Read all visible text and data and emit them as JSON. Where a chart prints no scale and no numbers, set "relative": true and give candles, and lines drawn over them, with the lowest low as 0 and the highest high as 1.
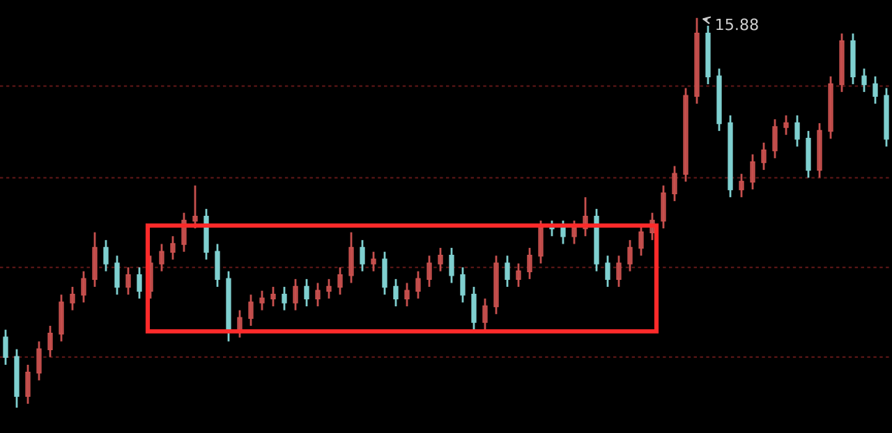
{
  "chart_data": {
    "type": "candlestick",
    "relative": true,
    "categories": [
      null,
      null,
      null,
      null,
      null,
      null,
      null,
      null,
      null,
      null,
      null,
      null,
      null,
      null,
      null,
      null,
      null,
      null,
      null,
      null,
      null,
      null,
      null,
      null,
      null,
      null,
      null,
      null,
      null,
      null,
      null,
      null,
      null,
      null,
      null,
      null,
      null,
      null,
      null,
      null,
      null,
      null,
      null,
      null,
      null,
      null,
      null,
      null,
      null,
      null,
      null,
      null,
      null,
      null,
      null,
      null,
      null,
      null,
      null,
      null,
      null,
      null,
      null,
      null,
      null,
      null,
      null,
      null,
      null,
      null,
      null,
      null,
      null,
      null,
      null,
      null,
      null,
      null,
      null,
      null
    ],
    "ohlc": [
      [
        0.18,
        0.2,
        0.11,
        0.13
      ],
      [
        0.13,
        0.15,
        0.0,
        0.03
      ],
      [
        0.03,
        0.11,
        0.01,
        0.09
      ],
      [
        0.09,
        0.17,
        0.07,
        0.15
      ],
      [
        0.15,
        0.21,
        0.13,
        0.19
      ],
      [
        0.19,
        0.29,
        0.17,
        0.27
      ],
      [
        0.27,
        0.31,
        0.25,
        0.29
      ],
      [
        0.29,
        0.35,
        0.27,
        0.33
      ],
      [
        0.33,
        0.45,
        0.31,
        0.41
      ],
      [
        0.41,
        0.43,
        0.35,
        0.37
      ],
      [
        0.37,
        0.39,
        0.29,
        0.31
      ],
      [
        0.31,
        0.36,
        0.29,
        0.34
      ],
      [
        0.34,
        0.36,
        0.28,
        0.3
      ],
      [
        0.3,
        0.39,
        0.28,
        0.37
      ],
      [
        0.37,
        0.42,
        0.35,
        0.4
      ],
      [
        0.4,
        0.44,
        0.38,
        0.42
      ],
      [
        0.42,
        0.5,
        0.4,
        0.48
      ],
      [
        0.48,
        0.57,
        0.46,
        0.49
      ],
      [
        0.49,
        0.51,
        0.38,
        0.4
      ],
      [
        0.4,
        0.42,
        0.31,
        0.33
      ],
      [
        0.33,
        0.35,
        0.17,
        0.2
      ],
      [
        0.2,
        0.25,
        0.18,
        0.23
      ],
      [
        0.23,
        0.29,
        0.21,
        0.27
      ],
      [
        0.27,
        0.3,
        0.25,
        0.28
      ],
      [
        0.28,
        0.31,
        0.26,
        0.29
      ],
      [
        0.29,
        0.31,
        0.25,
        0.27
      ],
      [
        0.27,
        0.33,
        0.25,
        0.31
      ],
      [
        0.31,
        0.33,
        0.26,
        0.28
      ],
      [
        0.28,
        0.32,
        0.26,
        0.3
      ],
      [
        0.3,
        0.33,
        0.28,
        0.31
      ],
      [
        0.31,
        0.36,
        0.29,
        0.34
      ],
      [
        0.34,
        0.45,
        0.32,
        0.41
      ],
      [
        0.41,
        0.43,
        0.35,
        0.37
      ],
      [
        0.37,
        0.4,
        0.35,
        0.38
      ],
      [
        0.38,
        0.4,
        0.29,
        0.31
      ],
      [
        0.31,
        0.33,
        0.26,
        0.28
      ],
      [
        0.28,
        0.32,
        0.26,
        0.3
      ],
      [
        0.3,
        0.35,
        0.28,
        0.33
      ],
      [
        0.33,
        0.39,
        0.31,
        0.37
      ],
      [
        0.37,
        0.41,
        0.35,
        0.39
      ],
      [
        0.39,
        0.41,
        0.32,
        0.34
      ],
      [
        0.34,
        0.36,
        0.27,
        0.29
      ],
      [
        0.29,
        0.31,
        0.2,
        0.22
      ],
      [
        0.22,
        0.28,
        0.2,
        0.26
      ],
      [
        0.26,
        0.39,
        0.24,
        0.37
      ],
      [
        0.37,
        0.39,
        0.31,
        0.33
      ],
      [
        0.33,
        0.37,
        0.31,
        0.35
      ],
      [
        0.35,
        0.41,
        0.33,
        0.39
      ],
      [
        0.39,
        0.48,
        0.37,
        0.46
      ],
      [
        0.46,
        0.48,
        0.44,
        0.46
      ],
      [
        0.46,
        0.48,
        0.42,
        0.44
      ],
      [
        0.44,
        0.48,
        0.42,
        0.46
      ],
      [
        0.46,
        0.54,
        0.44,
        0.49
      ],
      [
        0.49,
        0.51,
        0.35,
        0.37
      ],
      [
        0.37,
        0.39,
        0.31,
        0.33
      ],
      [
        0.33,
        0.39,
        0.31,
        0.37
      ],
      [
        0.37,
        0.43,
        0.35,
        0.41
      ],
      [
        0.41,
        0.47,
        0.39,
        0.45
      ],
      [
        0.45,
        0.5,
        0.43,
        0.48
      ],
      [
        0.48,
        0.57,
        0.46,
        0.55
      ],
      [
        0.55,
        0.62,
        0.53,
        0.6
      ],
      [
        0.6,
        0.82,
        0.58,
        0.8
      ],
      [
        0.8,
        1.0,
        0.78,
        0.96
      ],
      [
        0.96,
        0.98,
        0.83,
        0.85
      ],
      [
        0.85,
        0.87,
        0.71,
        0.73
      ],
      [
        0.73,
        0.75,
        0.54,
        0.56
      ],
      [
        0.56,
        0.6,
        0.54,
        0.58
      ],
      [
        0.58,
        0.65,
        0.56,
        0.63
      ],
      [
        0.63,
        0.68,
        0.61,
        0.66
      ],
      [
        0.66,
        0.74,
        0.64,
        0.72
      ],
      [
        0.72,
        0.75,
        0.7,
        0.73
      ],
      [
        0.73,
        0.75,
        0.67,
        0.69
      ],
      [
        0.69,
        0.71,
        0.59,
        0.61
      ],
      [
        0.61,
        0.73,
        0.59,
        0.71
      ],
      [
        0.71,
        0.85,
        0.69,
        0.83
      ],
      [
        0.83,
        0.96,
        0.81,
        0.94
      ],
      [
        0.94,
        0.96,
        0.83,
        0.85
      ],
      [
        0.85,
        0.87,
        0.81,
        0.83
      ],
      [
        0.83,
        0.85,
        0.78,
        0.8
      ],
      [
        0.8,
        0.82,
        0.67,
        0.69
      ]
    ],
    "colors": [
      "#7fd0d0",
      "#7fd0d0",
      "#c8504e",
      "#c8504e",
      "#c8504e",
      "#c8504e",
      "#c8504e",
      "#c8504e",
      "#c8504e",
      "#7fd0d0",
      "#7fd0d0",
      "#c8504e",
      "#7fd0d0",
      "#c8504e",
      "#c8504e",
      "#c8504e",
      "#c8504e",
      "#c8504e",
      "#7fd0d0",
      "#7fd0d0",
      "#7fd0d0",
      "#c8504e",
      "#c8504e",
      "#c8504e",
      "#c8504e",
      "#7fd0d0",
      "#c8504e",
      "#7fd0d0",
      "#c8504e",
      "#c8504e",
      "#c8504e",
      "#c8504e",
      "#7fd0d0",
      "#c8504e",
      "#7fd0d0",
      "#7fd0d0",
      "#c8504e",
      "#c8504e",
      "#c8504e",
      "#c8504e",
      "#7fd0d0",
      "#7fd0d0",
      "#7fd0d0",
      "#c8504e",
      "#c8504e",
      "#7fd0d0",
      "#c8504e",
      "#c8504e",
      "#c8504e",
      "#7fd0d0",
      "#7fd0d0",
      "#c8504e",
      "#c8504e",
      "#7fd0d0",
      "#7fd0d0",
      "#c8504e",
      "#c8504e",
      "#c8504e",
      "#c8504e",
      "#c8504e",
      "#c8504e",
      "#c8504e",
      "#c8504e",
      "#7fd0d0",
      "#7fd0d0",
      "#7fd0d0",
      "#c8504e",
      "#c8504e",
      "#c8504e",
      "#c8504e",
      "#c8504e",
      "#7fd0d0",
      "#7fd0d0",
      "#c8504e",
      "#c8504e",
      "#c8504e",
      "#7fd0d0",
      "#7fd0d0",
      "#7fd0d0",
      "#7fd0d0"
    ],
    "ref_lines": [
      {
        "axis": "y",
        "value": 0.825,
        "color": "#5a1616",
        "line_style": "dashed"
      },
      {
        "axis": "y",
        "value": 0.59,
        "color": "#5a1616",
        "line_style": "dashed"
      },
      {
        "axis": "y",
        "value": 0.36,
        "color": "#5a1616",
        "line_style": "dashed"
      },
      {
        "axis": "y",
        "value": 0.13,
        "color": "#5a1616",
        "line_style": "dashed"
      }
    ],
    "annotations": [
      "15.88"
    ]
  }
}
